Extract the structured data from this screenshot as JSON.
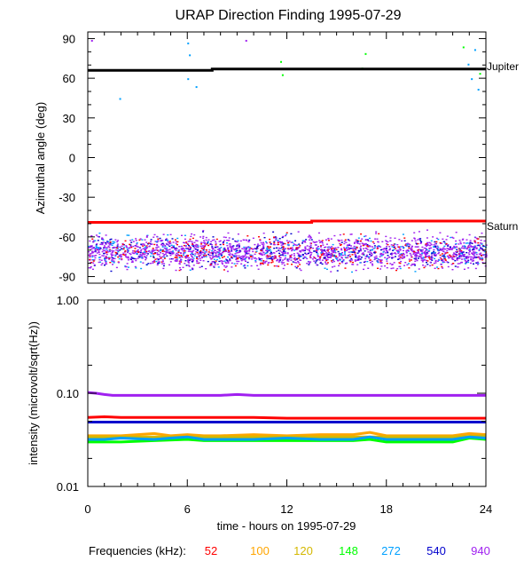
{
  "chart_data": [
    {
      "type": "scatter",
      "title": "URAP Direction Finding  1995-07-29",
      "ylabel": "Azimuthal angle (deg)",
      "xlim": [
        0,
        24
      ],
      "ylim": [
        -95,
        95
      ],
      "yticks": [
        90,
        60,
        30,
        0,
        -30,
        -60,
        -90
      ],
      "reference_lines": [
        {
          "label": "Jupiter",
          "color": "#000000",
          "x": [
            0,
            7.5,
            7.5,
            24
          ],
          "y": [
            66,
            66,
            67,
            67
          ]
        },
        {
          "label": "Saturn",
          "color": "#ff0000",
          "x": [
            0,
            13.5,
            13.5,
            24
          ],
          "y": [
            -49,
            -49,
            -48,
            -48
          ]
        }
      ],
      "scatter_band": {
        "y_center": -71,
        "y_spread": 8,
        "x_range": [
          0,
          24
        ],
        "color": "#a020f0"
      },
      "outliers": [
        {
          "x": 0.2,
          "y": 89,
          "color": "#a020f0"
        },
        {
          "x": 1.9,
          "y": 45,
          "color": "#00a0ff"
        },
        {
          "x": 6.0,
          "y": 87,
          "color": "#00a0ff"
        },
        {
          "x": 6.1,
          "y": 78,
          "color": "#00a0ff"
        },
        {
          "x": 6.0,
          "y": 60,
          "color": "#00a0ff"
        },
        {
          "x": 6.5,
          "y": 54,
          "color": "#00a0ff"
        },
        {
          "x": 9.5,
          "y": 89,
          "color": "#a020f0"
        },
        {
          "x": 11.6,
          "y": 73,
          "color": "#00ff00"
        },
        {
          "x": 11.7,
          "y": 63,
          "color": "#00ff00"
        },
        {
          "x": 16.7,
          "y": 79,
          "color": "#00ff00"
        },
        {
          "x": 16.5,
          "y": 68,
          "color": "#00ff00"
        },
        {
          "x": 22.6,
          "y": 84,
          "color": "#00ff00"
        },
        {
          "x": 22.9,
          "y": 71,
          "color": "#00a0ff"
        },
        {
          "x": 23.3,
          "y": 82,
          "color": "#00a0ff"
        },
        {
          "x": 23.1,
          "y": 60,
          "color": "#00a0ff"
        },
        {
          "x": 23.5,
          "y": 52,
          "color": "#00a0ff"
        },
        {
          "x": 23.6,
          "y": 64,
          "color": "#00ff00"
        }
      ]
    },
    {
      "type": "line",
      "ylabel": "intensity (microvolt/sqrt(Hz))",
      "xlabel": "time - hours on 1995-07-29",
      "yscale": "log",
      "ylim": [
        0.01,
        1.0
      ],
      "ytick_labels": [
        "1.00",
        "0.10",
        "0.01"
      ],
      "xlim": [
        0,
        24
      ],
      "xticks": [
        0,
        6,
        12,
        18,
        24
      ],
      "legend_label": "Frequencies (kHz):",
      "series": [
        {
          "name": "52",
          "color": "#ff0000",
          "x": [
            0,
            1,
            2,
            4,
            6,
            8,
            10,
            12,
            14,
            16,
            18,
            20,
            22,
            24
          ],
          "values": [
            0.055,
            0.056,
            0.055,
            0.055,
            0.055,
            0.055,
            0.055,
            0.054,
            0.054,
            0.054,
            0.054,
            0.054,
            0.054,
            0.054
          ]
        },
        {
          "name": "100",
          "color": "#ffa500",
          "x": [
            0,
            1,
            2,
            4,
            5,
            6,
            7,
            8,
            10,
            12,
            14,
            16,
            17,
            18,
            20,
            22,
            23,
            24
          ],
          "values": [
            0.035,
            0.035,
            0.035,
            0.037,
            0.035,
            0.036,
            0.035,
            0.035,
            0.036,
            0.035,
            0.036,
            0.036,
            0.038,
            0.035,
            0.035,
            0.035,
            0.037,
            0.036
          ]
        },
        {
          "name": "120",
          "color": "#d4b800",
          "x": [
            0,
            2,
            4,
            6,
            8,
            10,
            12,
            14,
            16,
            18,
            20,
            22,
            24
          ],
          "values": [
            0.034,
            0.034,
            0.034,
            0.034,
            0.034,
            0.034,
            0.034,
            0.034,
            0.034,
            0.034,
            0.034,
            0.034,
            0.035
          ]
        },
        {
          "name": "148",
          "color": "#00ff00",
          "x": [
            0,
            2,
            4,
            6,
            7,
            8,
            10,
            12,
            14,
            16,
            17,
            18,
            20,
            22,
            23,
            24
          ],
          "values": [
            0.03,
            0.03,
            0.031,
            0.032,
            0.031,
            0.031,
            0.031,
            0.031,
            0.031,
            0.031,
            0.032,
            0.03,
            0.03,
            0.03,
            0.033,
            0.032
          ]
        },
        {
          "name": "272",
          "color": "#00a0ff",
          "x": [
            0,
            1,
            2,
            4,
            5,
            6,
            7,
            8,
            10,
            12,
            14,
            16,
            17,
            18,
            20,
            22,
            23,
            24
          ],
          "values": [
            0.032,
            0.032,
            0.033,
            0.032,
            0.033,
            0.034,
            0.032,
            0.032,
            0.032,
            0.033,
            0.032,
            0.032,
            0.034,
            0.032,
            0.032,
            0.032,
            0.034,
            0.033
          ]
        },
        {
          "name": "540",
          "color": "#0000cd",
          "x": [
            0,
            4,
            8,
            12,
            16,
            20,
            24
          ],
          "values": [
            0.049,
            0.049,
            0.049,
            0.049,
            0.049,
            0.049,
            0.049
          ]
        },
        {
          "name": "940",
          "color": "#a020f0",
          "x": [
            0,
            0.5,
            1,
            1.5,
            3,
            6,
            8,
            9,
            10,
            12,
            15,
            18,
            21,
            24
          ],
          "values": [
            0.102,
            0.1,
            0.097,
            0.095,
            0.095,
            0.095,
            0.095,
            0.097,
            0.095,
            0.095,
            0.095,
            0.095,
            0.095,
            0.095
          ]
        }
      ]
    }
  ],
  "xtick_labels": [
    "0",
    "6",
    "12",
    "18",
    "24"
  ]
}
